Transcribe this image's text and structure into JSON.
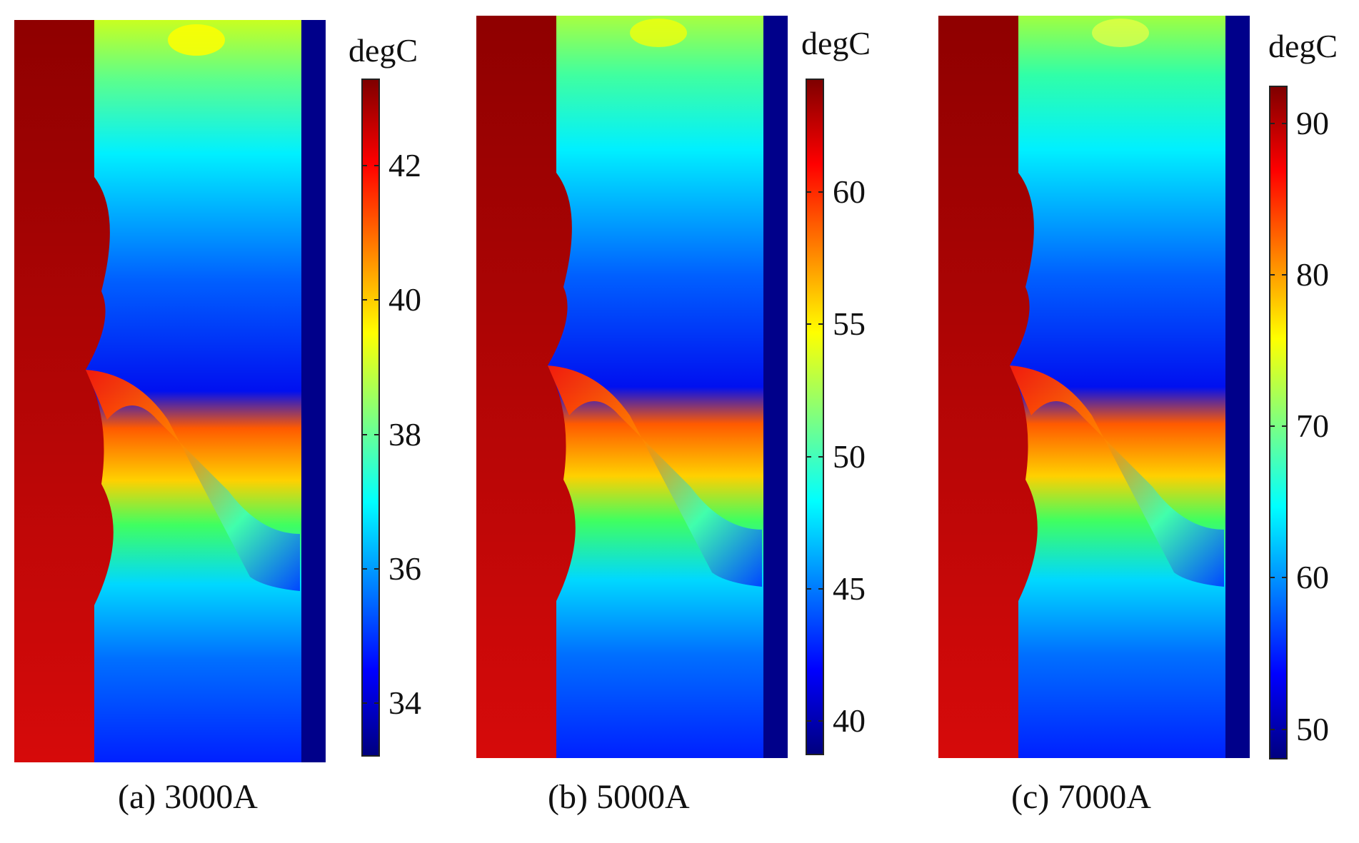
{
  "unit_label": "degC",
  "panels": [
    {
      "id": "a",
      "caption": "(a) 3000A",
      "colorbar": {
        "min": 33.2,
        "max": 43.3,
        "ticks": [
          34,
          36,
          38,
          40,
          42
        ]
      }
    },
    {
      "id": "b",
      "caption": "(b) 5000A",
      "colorbar": {
        "min": 38.7,
        "max": 64.3,
        "ticks": [
          40,
          45,
          50,
          55,
          60
        ]
      }
    },
    {
      "id": "c",
      "caption": "(c) 7000A",
      "colorbar": {
        "min": 48.0,
        "max": 92.5,
        "ticks": [
          50,
          60,
          70,
          80,
          90
        ]
      }
    }
  ],
  "colors": {
    "hot_solid": "#b8060a",
    "outer_wall": "#00008a",
    "fluid_top": "#7fff3f",
    "fluid_mid": "#00e5ff",
    "fluid_low": "#0000ff"
  }
}
